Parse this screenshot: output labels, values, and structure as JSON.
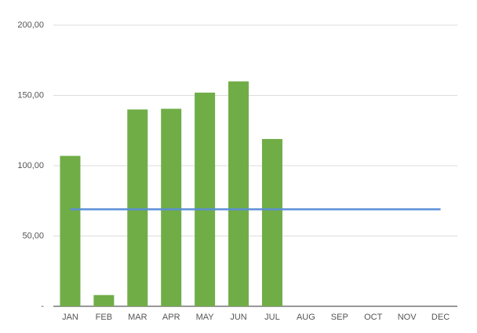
{
  "chart_data": {
    "type": "bar-line",
    "categories": [
      "JAN",
      "FEB",
      "MAR",
      "APR",
      "MAY",
      "JUN",
      "JUL",
      "AUG",
      "SEP",
      "OCT",
      "NOV",
      "DEC"
    ],
    "series": [
      {
        "type": "bar",
        "color": "#70ad47",
        "values": [
          107,
          8,
          140,
          140.5,
          152,
          160,
          119,
          null,
          null,
          null,
          null,
          null
        ]
      },
      {
        "type": "line",
        "color": "#5b8fd6",
        "values": [
          69,
          69,
          69,
          69,
          69,
          69,
          69,
          69,
          69,
          69,
          69,
          69
        ]
      }
    ],
    "ylim": [
      0,
      200
    ],
    "yticks": [
      {
        "value": 0,
        "label": "-"
      },
      {
        "value": 50,
        "label": "50,00"
      },
      {
        "value": 100,
        "label": "100,00"
      },
      {
        "value": 150,
        "label": "150,00"
      },
      {
        "value": 200,
        "label": "200,00"
      }
    ],
    "grid": true
  }
}
